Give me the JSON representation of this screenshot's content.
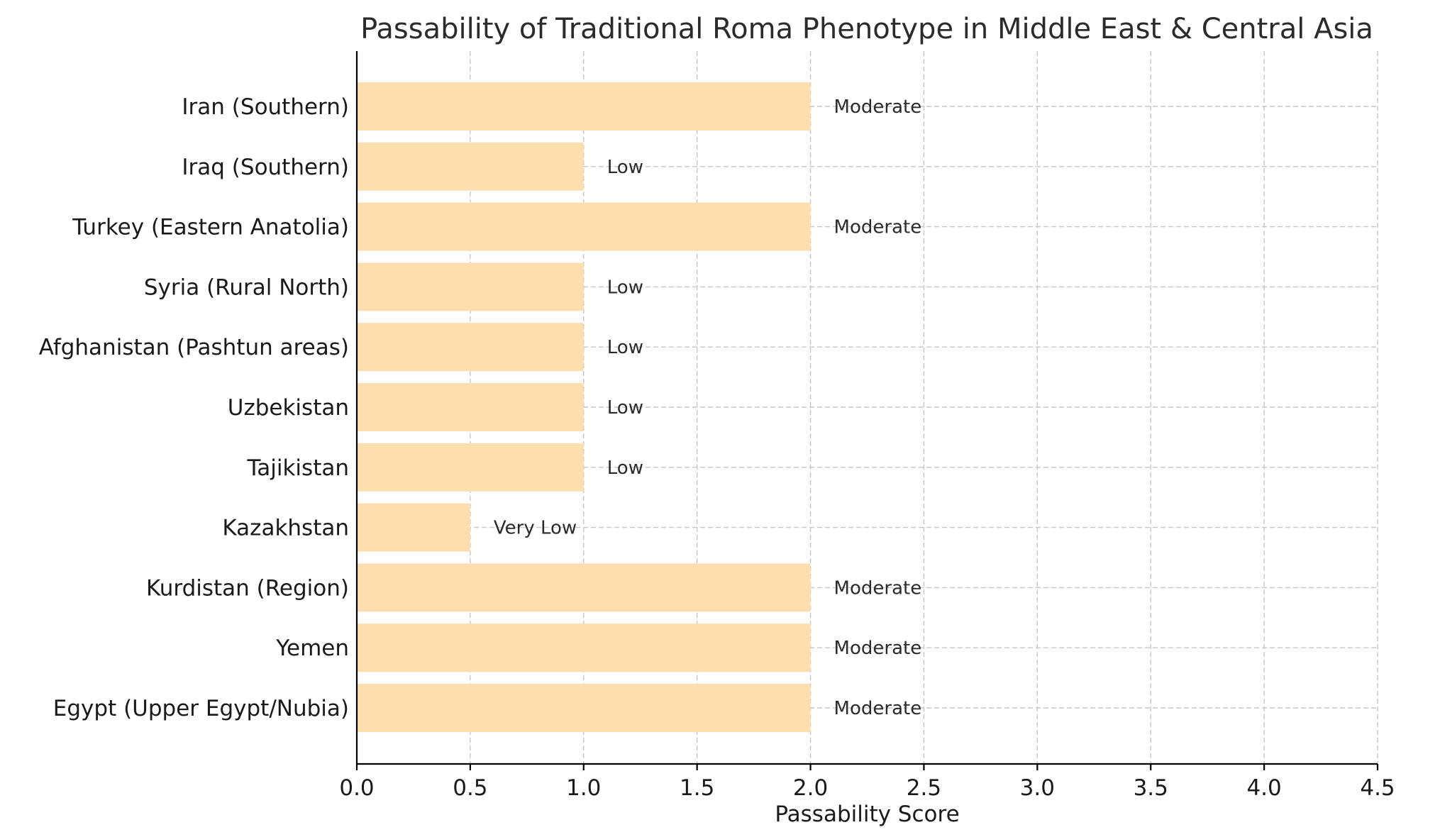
{
  "chart_data": {
    "type": "bar",
    "orientation": "horizontal",
    "title": "Passability of Traditional Roma Phenotype in Middle East & Central Asia",
    "xlabel": "Passability Score",
    "ylabel": "",
    "xlim": [
      0,
      4.5
    ],
    "xticks": [
      0.0,
      0.5,
      1.0,
      1.5,
      2.0,
      2.5,
      3.0,
      3.5,
      4.0,
      4.5
    ],
    "xtick_labels": [
      "0.0",
      "0.5",
      "1.0",
      "1.5",
      "2.0",
      "2.5",
      "3.0",
      "3.5",
      "4.0",
      "4.5"
    ],
    "grid": true,
    "bar_color": "#FDDEAE",
    "categories": [
      "Iran (Southern)",
      "Iraq (Southern)",
      "Turkey (Eastern Anatolia)",
      "Syria (Rural North)",
      "Afghanistan (Pashtun areas)",
      "Uzbekistan",
      "Tajikistan",
      "Kazakhstan",
      "Kurdistan (Region)",
      "Yemen",
      "Egypt (Upper Egypt/Nubia)"
    ],
    "values": [
      2,
      1,
      2,
      1,
      1,
      1,
      1,
      0.5,
      2,
      2,
      2
    ],
    "bar_labels": [
      "Moderate",
      "Low",
      "Moderate",
      "Low",
      "Low",
      "Low",
      "Low",
      "Very Low",
      "Moderate",
      "Moderate",
      "Moderate"
    ]
  }
}
